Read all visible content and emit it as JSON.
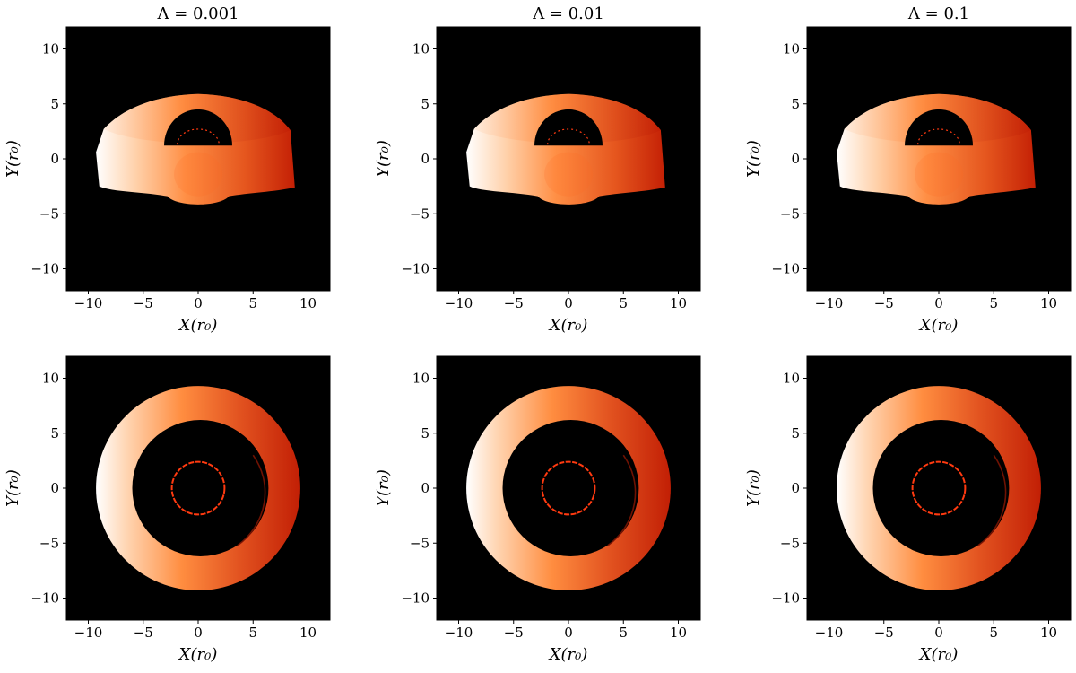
{
  "figure": {
    "col_titles": [
      "Λ = 0.001",
      "Λ = 0.01",
      "Λ = 0.1"
    ],
    "xlabel": "X(r₀)",
    "ylabel": "Y(r₀)",
    "xlim": [
      -12,
      12
    ],
    "ylim": [
      -12,
      12
    ],
    "tick_values": [
      -10,
      -5,
      0,
      5,
      10
    ],
    "tick_labels": [
      "−10",
      "−5",
      "0",
      "5",
      "10"
    ],
    "rows": [
      {
        "name": "inclined view"
      },
      {
        "name": "face-on view"
      }
    ],
    "colors": {
      "background": "#000000",
      "hot": "#ffffff",
      "warm": "#ff8a3a",
      "cool": "#c81e06",
      "ring": "#ff3a10"
    }
  }
}
